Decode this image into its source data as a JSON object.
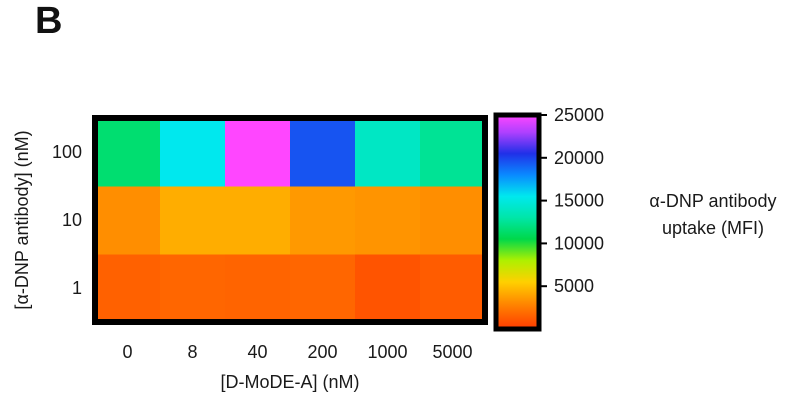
{
  "panel_label": "B",
  "chart_data": {
    "type": "heatmap",
    "title": "",
    "xlabel": "[D-MoDE-A] (nM)",
    "ylabel": "[α-DNP antibody] (nM)",
    "x_categories": [
      "0",
      "8",
      "40",
      "200",
      "1000",
      "5000"
    ],
    "y_categories": [
      "1",
      "10",
      "100"
    ],
    "values": [
      [
        1500,
        1700,
        1600,
        1700,
        1000,
        1300
      ],
      [
        3200,
        4300,
        4300,
        3600,
        3400,
        3200
      ],
      [
        11500,
        15500,
        25000,
        19500,
        14000,
        12500
      ]
    ],
    "colorbar": {
      "label_lines": [
        "α-DNP antibody",
        "uptake (MFI)"
      ],
      "range": [
        0,
        25000
      ],
      "ticks": [
        5000,
        10000,
        15000,
        20000,
        25000
      ],
      "tick_labels": [
        "5000",
        "10000",
        "15000",
        "20000",
        "25000"
      ],
      "colormap": "rainbow (red → orange → yellow → green → cyan → blue → magenta)"
    }
  }
}
